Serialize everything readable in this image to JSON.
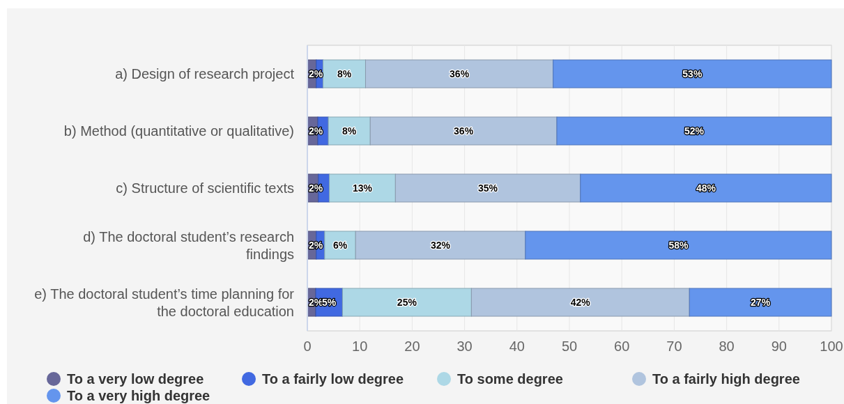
{
  "chart_data": {
    "type": "bar",
    "orientation": "horizontal",
    "stacked": true,
    "categories": [
      "a) Design of research project",
      "b) Method (quantitative or qualitative)",
      "c) Structure of scientific texts",
      "d) The doctoral student’s research findings",
      "e) The doctoral student’s time planning for the doctoral education"
    ],
    "series": [
      {
        "name": "To a very low degree",
        "color": "#676799",
        "values": [
          1.7,
          2.0,
          2.1,
          1.7,
          1.6
        ],
        "value_labels": [
          "2%",
          "2%",
          "2%",
          "2%",
          "2%"
        ]
      },
      {
        "name": "To a fairly low degree",
        "color": "#4169e1",
        "values": [
          1.3,
          2.0,
          2.1,
          1.6,
          5.1
        ],
        "value_labels": [
          null,
          null,
          null,
          null,
          "5%"
        ]
      },
      {
        "name": "To some degree",
        "color": "#add8e6",
        "values": [
          8.1,
          8.0,
          12.6,
          5.9,
          24.6
        ],
        "value_labels": [
          "8%",
          "8%",
          "13%",
          "6%",
          "25%"
        ]
      },
      {
        "name": "To a fairly high degree",
        "color": "#b0c4de",
        "values": [
          35.8,
          35.6,
          35.3,
          32.4,
          41.6
        ],
        "value_labels": [
          "36%",
          "36%",
          "35%",
          "32%",
          "42%"
        ]
      },
      {
        "name": "To a very high degree",
        "color": "#6495ed",
        "values": [
          53.1,
          52.4,
          47.9,
          58.4,
          27.1
        ],
        "value_labels": [
          "53%",
          "52%",
          "48%",
          "58%",
          "27%"
        ]
      }
    ],
    "xlim": [
      0,
      100
    ],
    "xticks": [
      0,
      10,
      20,
      30,
      40,
      50,
      60,
      70,
      80,
      90,
      100
    ],
    "grid": "x",
    "legend": "bottom"
  }
}
